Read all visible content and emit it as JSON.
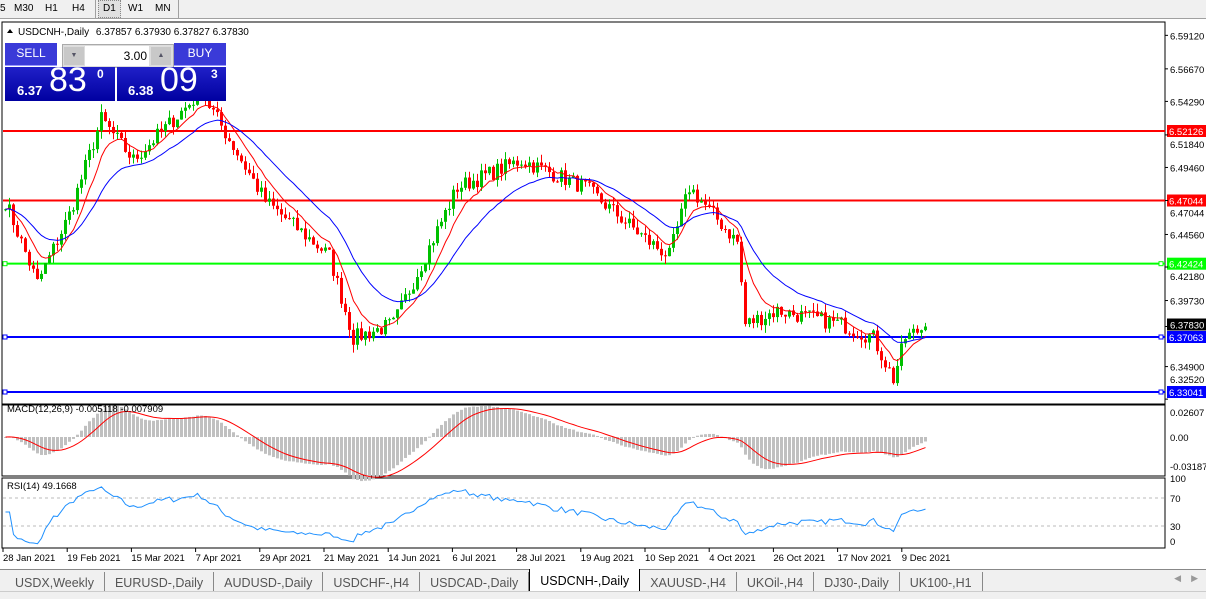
{
  "timeframes": {
    "items": [
      "5",
      "M30",
      "H1",
      "H4",
      "D1",
      "W1",
      "MN"
    ],
    "active": "D1"
  },
  "chart": {
    "title": "USDCNH-,Daily",
    "ohlc": "6.37857 6.37930 6.37827 6.37830",
    "price_axis": [
      "6.59120",
      "6.56670",
      "6.54290",
      "6.51840",
      "6.49460",
      "6.47044",
      "6.44560",
      "6.42180",
      "6.39730",
      "6.37830",
      "6.34900",
      "6.32520"
    ],
    "date_labels": [
      "28 Jan 2021",
      "19 Feb 2021",
      "15 Mar 2021",
      "7 Apr 2021",
      "29 Apr 2021",
      "21 May 2021",
      "14 Jun 2021",
      "6 Jul 2021",
      "28 Jul 2021",
      "19 Aug 2021",
      "10 Sep 2021",
      "4 Oct 2021",
      "26 Oct 2021",
      "17 Nov 2021",
      "9 Dec 2021"
    ],
    "current_price": "6.37830",
    "horizontal_lines": [
      {
        "label": "6.52126",
        "price": 6.52126,
        "color": "#ff0000"
      },
      {
        "label": "6.47044",
        "price": 6.47044,
        "color": "#ff0000"
      },
      {
        "label": "6.42424",
        "price": 6.42424,
        "color": "#00ff00"
      },
      {
        "label": "6.37063",
        "price": 6.37063,
        "color": "#0000ff"
      },
      {
        "label": "6.33041",
        "price": 6.33041,
        "color": "#0000ff"
      }
    ],
    "colors": {
      "bull": "#00c000",
      "bear": "#ff0000",
      "ma_fast": "#ff0000",
      "ma_slow": "#0000ff",
      "macd_hist": "#c0c0c0",
      "macd_signal": "#ff0000",
      "rsi": "#1e90ff"
    }
  },
  "trade_panel": {
    "sell_label": "SELL",
    "buy_label": "BUY",
    "lot": "3.00",
    "sell_price": {
      "small": "6.37",
      "big": "83",
      "sup": "0"
    },
    "buy_price": {
      "small": "6.38",
      "big": "09",
      "sup": "3"
    }
  },
  "macd": {
    "title": "MACD(12,26,9) -0.005118 -0.007909",
    "axis": [
      "0.02607",
      "0.00",
      "-0.03187"
    ]
  },
  "rsi": {
    "title": "RSI(14) 49.1668",
    "axis": [
      "100",
      "70",
      "30",
      "0"
    ],
    "levels": [
      70,
      30
    ]
  },
  "chart_data": {
    "type": "candlestick",
    "symbol": "USDCNH-",
    "timeframe": "Daily",
    "approx_closes": [
      [
        "2021-01-28",
        6.47
      ],
      [
        "2021-02-09",
        6.41
      ],
      [
        "2021-02-19",
        6.46
      ],
      [
        "2021-03-03",
        6.53
      ],
      [
        "2021-03-15",
        6.5
      ],
      [
        "2021-04-07",
        6.55
      ],
      [
        "2021-04-29",
        6.47
      ],
      [
        "2021-05-21",
        6.43
      ],
      [
        "2021-05-31",
        6.37
      ],
      [
        "2021-06-14",
        6.38
      ],
      [
        "2021-07-06",
        6.48
      ],
      [
        "2021-07-28",
        6.5
      ],
      [
        "2021-08-19",
        6.48
      ],
      [
        "2021-09-10",
        6.44
      ],
      [
        "2021-09-17",
        6.43
      ],
      [
        "2021-09-24",
        6.48
      ],
      [
        "2021-10-04",
        6.46
      ],
      [
        "2021-10-12",
        6.44
      ],
      [
        "2021-10-14",
        6.38
      ],
      [
        "2021-10-26",
        6.39
      ],
      [
        "2021-11-17",
        6.38
      ],
      [
        "2021-11-29",
        6.37
      ],
      [
        "2021-12-06",
        6.34
      ],
      [
        "2021-12-09",
        6.37
      ],
      [
        "2021-12-16",
        6.3783
      ]
    ]
  },
  "tabs": {
    "items": [
      "USDX,Weekly",
      "EURUSD-,Daily",
      "AUDUSD-,Daily",
      "USDCHF-,H4",
      "USDCAD-,Daily",
      "USDCNH-,Daily",
      "XAUUSD-,H4",
      "UKOil-,H4",
      "DJ30-,Daily",
      "UK100-,H1"
    ],
    "active": "USDCNH-,Daily"
  }
}
